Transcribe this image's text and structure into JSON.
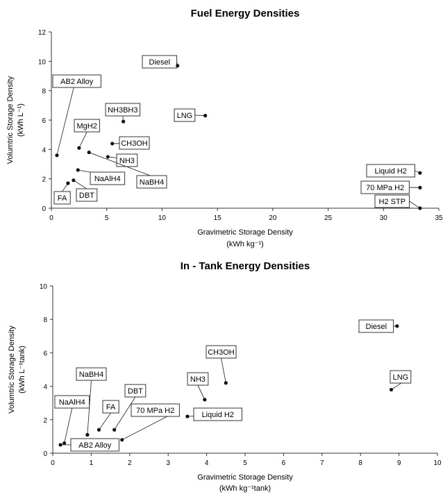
{
  "chart_data": [
    {
      "type": "scatter",
      "title": "Fuel Energy Densities",
      "xlabel": "Gravimetric Storage Density",
      "xunit": "(kWh kg⁻¹)",
      "ylabel": "Volumtric Storage Density",
      "yunit": "(kWh L⁻¹)",
      "xlim": [
        0,
        35
      ],
      "ylim": [
        0,
        12
      ],
      "xticks": [
        0,
        5,
        10,
        15,
        20,
        25,
        30,
        35
      ],
      "yticks": [
        0,
        2,
        4,
        6,
        8,
        10,
        12
      ],
      "grid": false,
      "points": [
        {
          "label": "Diesel",
          "x": 11.4,
          "y": 9.7
        },
        {
          "label": "AB2 Alloy",
          "x": 0.5,
          "y": 3.6
        },
        {
          "label": "NH3BH3",
          "x": 6.5,
          "y": 5.9
        },
        {
          "label": "LNG",
          "x": 13.9,
          "y": 6.3
        },
        {
          "label": "MgH2",
          "x": 2.5,
          "y": 4.1
        },
        {
          "label": "CH3OH",
          "x": 5.5,
          "y": 4.4
        },
        {
          "label": "NH3",
          "x": 5.1,
          "y": 3.5
        },
        {
          "label": "NaAlH4",
          "x": 2.4,
          "y": 2.6
        },
        {
          "label": "NaBH4",
          "x": 3.4,
          "y": 3.8
        },
        {
          "label": "DBT",
          "x": 2.0,
          "y": 1.9
        },
        {
          "label": "FA",
          "x": 1.5,
          "y": 1.7
        },
        {
          "label": "Liquid H2",
          "x": 33.3,
          "y": 2.4
        },
        {
          "label": "70 MPa H2",
          "x": 33.3,
          "y": 1.4
        },
        {
          "label": "H2 STP",
          "x": 33.3,
          "y": 0.0
        }
      ]
    },
    {
      "type": "scatter",
      "title": "In - Tank Energy Densities",
      "xlabel": "Gravimetric Storage Density",
      "xunit": "(kWh kg⁻¹tank)",
      "ylabel": "Volumtric Storage Density",
      "yunit": "(kWh L⁻¹tank)",
      "xlim": [
        0,
        10
      ],
      "ylim": [
        0,
        10
      ],
      "xticks": [
        0,
        1,
        2,
        3,
        4,
        5,
        6,
        7,
        8,
        9,
        10
      ],
      "yticks": [
        0,
        2,
        4,
        6,
        8,
        10
      ],
      "grid": false,
      "points": [
        {
          "label": "Diesel",
          "x": 8.95,
          "y": 7.6
        },
        {
          "label": "LNG",
          "x": 8.8,
          "y": 3.8
        },
        {
          "label": "CH3OH",
          "x": 4.5,
          "y": 4.2
        },
        {
          "label": "NH3",
          "x": 3.95,
          "y": 3.2
        },
        {
          "label": "Liquid H2",
          "x": 3.5,
          "y": 2.2
        },
        {
          "label": "NaBH4",
          "x": 0.9,
          "y": 1.1
        },
        {
          "label": "NaAlH4",
          "x": 0.3,
          "y": 0.6
        },
        {
          "label": "FA",
          "x": 1.2,
          "y": 1.4
        },
        {
          "label": "DBT",
          "x": 1.6,
          "y": 1.4
        },
        {
          "label": "70 MPa H2",
          "x": 1.8,
          "y": 0.8
        },
        {
          "label": "AB2 Alloy",
          "x": 0.2,
          "y": 0.5
        }
      ]
    }
  ]
}
